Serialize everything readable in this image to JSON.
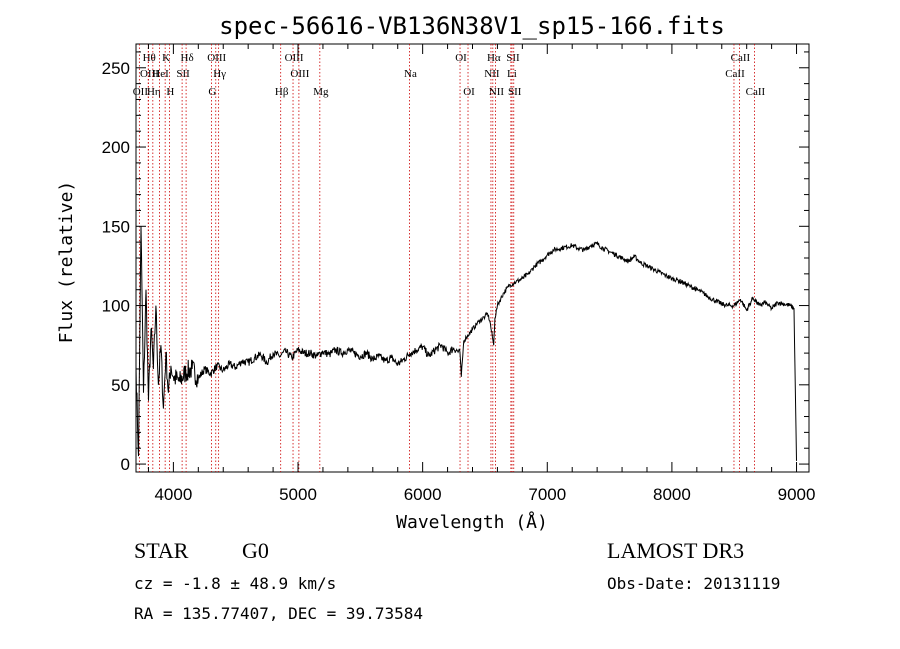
{
  "chart_data": {
    "type": "line",
    "title": "spec-56616-VB136N38V1_sp15-166.fits",
    "xlabel": "Wavelength (Å)",
    "ylabel": "Flux (relative)",
    "xlim": [
      3700,
      9100
    ],
    "ylim": [
      -5,
      265
    ],
    "xticks": [
      4000,
      5000,
      6000,
      7000,
      8000,
      9000
    ],
    "yticks": [
      0,
      50,
      100,
      150,
      200,
      250
    ],
    "grid": false,
    "line_color": "#000000",
    "marker_color": "#cc0000",
    "spectrum_x": [
      3700,
      3720,
      3740,
      3760,
      3780,
      3800,
      3820,
      3840,
      3860,
      3880,
      3900,
      3920,
      3940,
      3960,
      3980,
      4000,
      4050,
      4100,
      4150,
      4200,
      4250,
      4300,
      4350,
      4400,
      4450,
      4500,
      4550,
      4600,
      4650,
      4700,
      4750,
      4800,
      4850,
      4900,
      4950,
      5000,
      5050,
      5100,
      5150,
      5200,
      5250,
      5300,
      5350,
      5400,
      5450,
      5500,
      5550,
      5600,
      5650,
      5700,
      5750,
      5800,
      5850,
      5900,
      5950,
      6000,
      6050,
      6100,
      6150,
      6200,
      6250,
      6300,
      6310,
      6330,
      6350,
      6400,
      6450,
      6500,
      6520,
      6540,
      6560,
      6570,
      6580,
      6600,
      6650,
      6700,
      6750,
      6800,
      6850,
      6900,
      6950,
      7000,
      7050,
      7100,
      7150,
      7200,
      7250,
      7300,
      7350,
      7400,
      7450,
      7500,
      7550,
      7600,
      7650,
      7700,
      7750,
      7800,
      7850,
      7900,
      7950,
      8000,
      8050,
      8100,
      8150,
      8200,
      8250,
      8300,
      8350,
      8400,
      8450,
      8500,
      8550,
      8600,
      8650,
      8700,
      8750,
      8800,
      8850,
      8900,
      8950,
      8980,
      9000
    ],
    "spectrum_y": [
      62,
      5,
      150,
      45,
      110,
      40,
      85,
      60,
      100,
      50,
      75,
      35,
      70,
      45,
      62,
      55,
      52,
      58,
      60,
      54,
      60,
      57,
      62,
      59,
      63,
      61,
      65,
      64,
      67,
      69,
      64,
      70,
      68,
      71,
      67,
      72,
      70,
      70,
      68,
      71,
      69,
      72,
      70,
      72,
      70,
      68,
      70,
      66,
      68,
      65,
      67,
      63,
      66,
      70,
      72,
      74,
      68,
      72,
      75,
      70,
      73,
      70,
      55,
      78,
      80,
      85,
      90,
      93,
      95,
      90,
      80,
      75,
      92,
      100,
      108,
      113,
      115,
      117,
      120,
      125,
      128,
      132,
      135,
      136,
      137,
      138,
      136,
      135,
      138,
      139,
      136,
      134,
      132,
      130,
      128,
      131,
      127,
      125,
      123,
      121,
      119,
      117,
      116,
      114,
      112,
      110,
      108,
      105,
      103,
      101,
      100,
      100,
      104,
      97,
      105,
      100,
      102,
      98,
      102,
      101,
      100,
      98,
      2
    ],
    "lines": [
      {
        "name": "OII",
        "wave": 3727,
        "row": 3
      },
      {
        "name": "Hθ",
        "wave": 3798,
        "row": 1
      },
      {
        "name": "OIII",
        "wave": 3800,
        "row": 2
      },
      {
        "name": "Hη",
        "wave": 3835,
        "row": 3
      },
      {
        "name": "HeI",
        "wave": 3889,
        "row": 2
      },
      {
        "name": "K",
        "wave": 3934,
        "row": 1
      },
      {
        "name": "H",
        "wave": 3968,
        "row": 3
      },
      {
        "name": "SII",
        "wave": 4070,
        "row": 2
      },
      {
        "name": "Hδ",
        "wave": 4102,
        "row": 1
      },
      {
        "name": "G",
        "wave": 4305,
        "row": 3
      },
      {
        "name": "OIII",
        "wave": 4340,
        "row": 1
      },
      {
        "name": "Hγ",
        "wave": 4363,
        "row": 2
      },
      {
        "name": "Hβ",
        "wave": 4861,
        "row": 3
      },
      {
        "name": "OIII",
        "wave": 4960,
        "row": 1
      },
      {
        "name": "OIII",
        "wave": 5007,
        "row": 2
      },
      {
        "name": "Mg",
        "wave": 5175,
        "row": 3
      },
      {
        "name": "Na",
        "wave": 5894,
        "row": 2
      },
      {
        "name": "OI",
        "wave": 6300,
        "row": 1
      },
      {
        "name": "OI",
        "wave": 6364,
        "row": 3
      },
      {
        "name": "Hα",
        "wave": 6563,
        "row": 1
      },
      {
        "name": "NII",
        "wave": 6548,
        "row": 2
      },
      {
        "name": "NII",
        "wave": 6584,
        "row": 3
      },
      {
        "name": "SII",
        "wave": 6717,
        "row": 1
      },
      {
        "name": "Li",
        "wave": 6708,
        "row": 2
      },
      {
        "name": "SII",
        "wave": 6731,
        "row": 3
      },
      {
        "name": "CaII",
        "wave": 8542,
        "row": 1
      },
      {
        "name": "CaII",
        "wave": 8498,
        "row": 2
      },
      {
        "name": "CaII",
        "wave": 8662,
        "row": 3
      }
    ]
  },
  "info": {
    "obj_class": "STAR",
    "obj_subclass": "G0",
    "survey": "LAMOST DR3",
    "redshift": "cz = -1.8 ± 48.9 km/s",
    "obs_date": "Obs-Date: 20131119",
    "coords": "RA = 135.77407, DEC =  39.73584"
  }
}
